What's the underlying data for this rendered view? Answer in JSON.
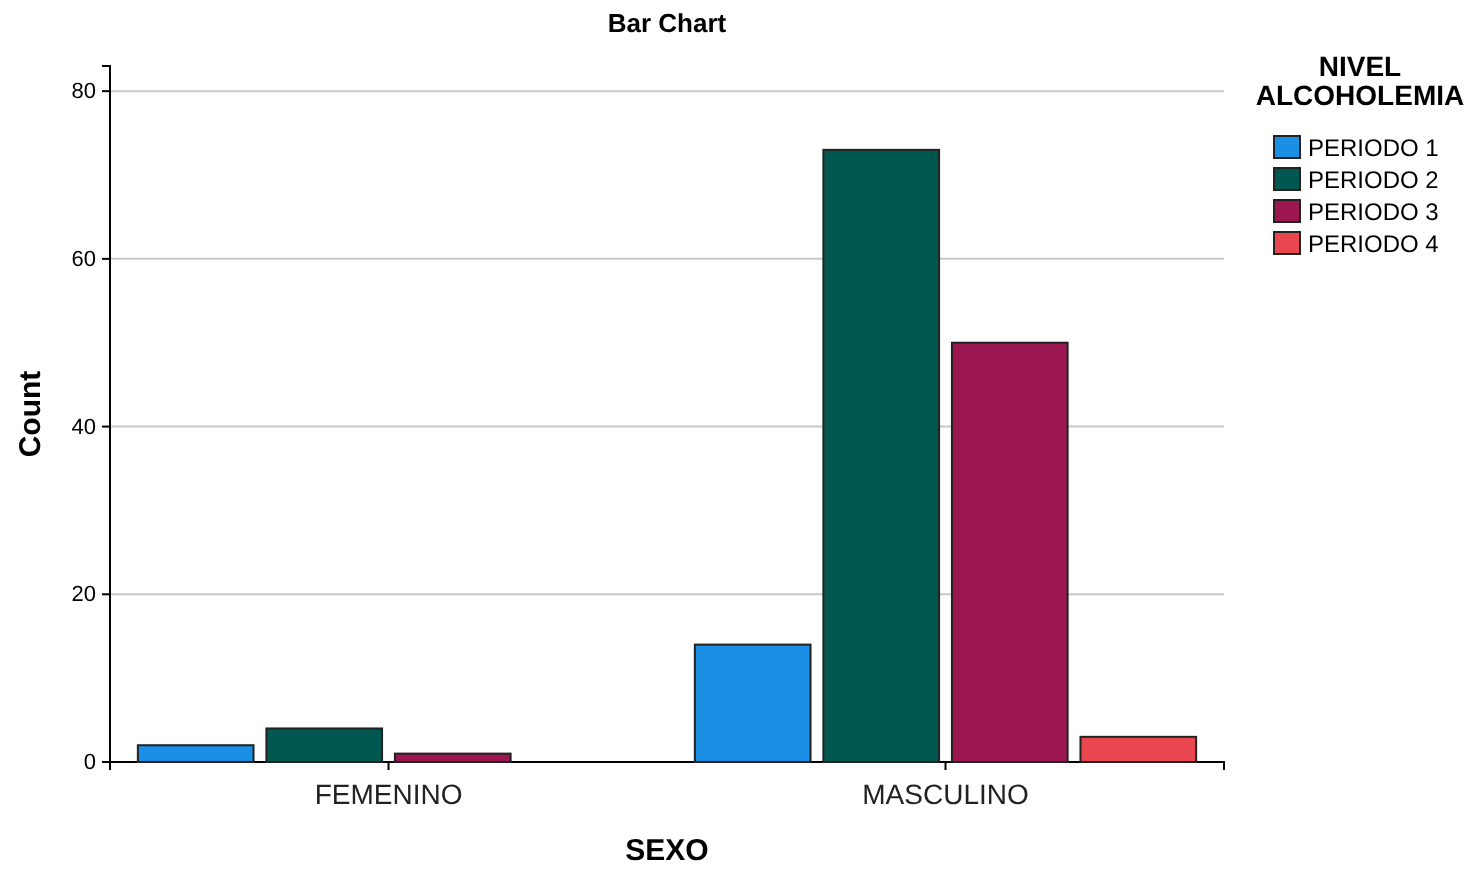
{
  "chart_data": {
    "type": "bar",
    "title": "Bar Chart",
    "xlabel": "SEXO",
    "ylabel": "Count",
    "legend_title": "NIVEL ALCOHOLEMIA",
    "categories": [
      "FEMENINO",
      "MASCULINO"
    ],
    "series": [
      {
        "name": "PERIODO 1",
        "color": "#1a8fe3",
        "values": [
          2,
          14
        ]
      },
      {
        "name": "PERIODO 2",
        "color": "#00574f",
        "values": [
          4,
          73
        ]
      },
      {
        "name": "PERIODO 3",
        "color": "#9c1750",
        "values": [
          1,
          50
        ]
      },
      {
        "name": "PERIODO 4",
        "color": "#e8474f",
        "values": [
          null,
          3
        ]
      }
    ],
    "ylim": [
      0,
      83
    ],
    "yticks": [
      0,
      20,
      40,
      60,
      80
    ],
    "grid": "y",
    "legend": "right"
  }
}
